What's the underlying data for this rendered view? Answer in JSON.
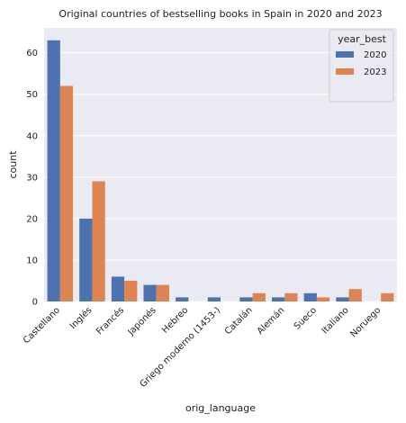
{
  "chart_data": {
    "type": "bar",
    "title": "Original countries of bestselling books in Spain in 2020 and 2023",
    "xlabel": "orig_language",
    "ylabel": "count",
    "ylim": [
      0,
      66
    ],
    "yticks": [
      0,
      10,
      20,
      30,
      40,
      50,
      60
    ],
    "grid": true,
    "legend_title": "year_best",
    "legend_position": "top-right",
    "categories": [
      "Castellano",
      "Inglés",
      "Francés",
      "Japonés",
      "Hebreo",
      "Griego moderno (1453-)",
      "Catalán",
      "Alemán",
      "Sueco",
      "Italiano",
      "Noruego"
    ],
    "series": [
      {
        "name": "2020",
        "color": "#4c72b0",
        "values": [
          63,
          20,
          6,
          4,
          1,
          1,
          1,
          1,
          2,
          1,
          0
        ]
      },
      {
        "name": "2023",
        "color": "#dd8452",
        "values": [
          52,
          29,
          5,
          4,
          0,
          0,
          2,
          2,
          1,
          3,
          2
        ]
      }
    ]
  }
}
